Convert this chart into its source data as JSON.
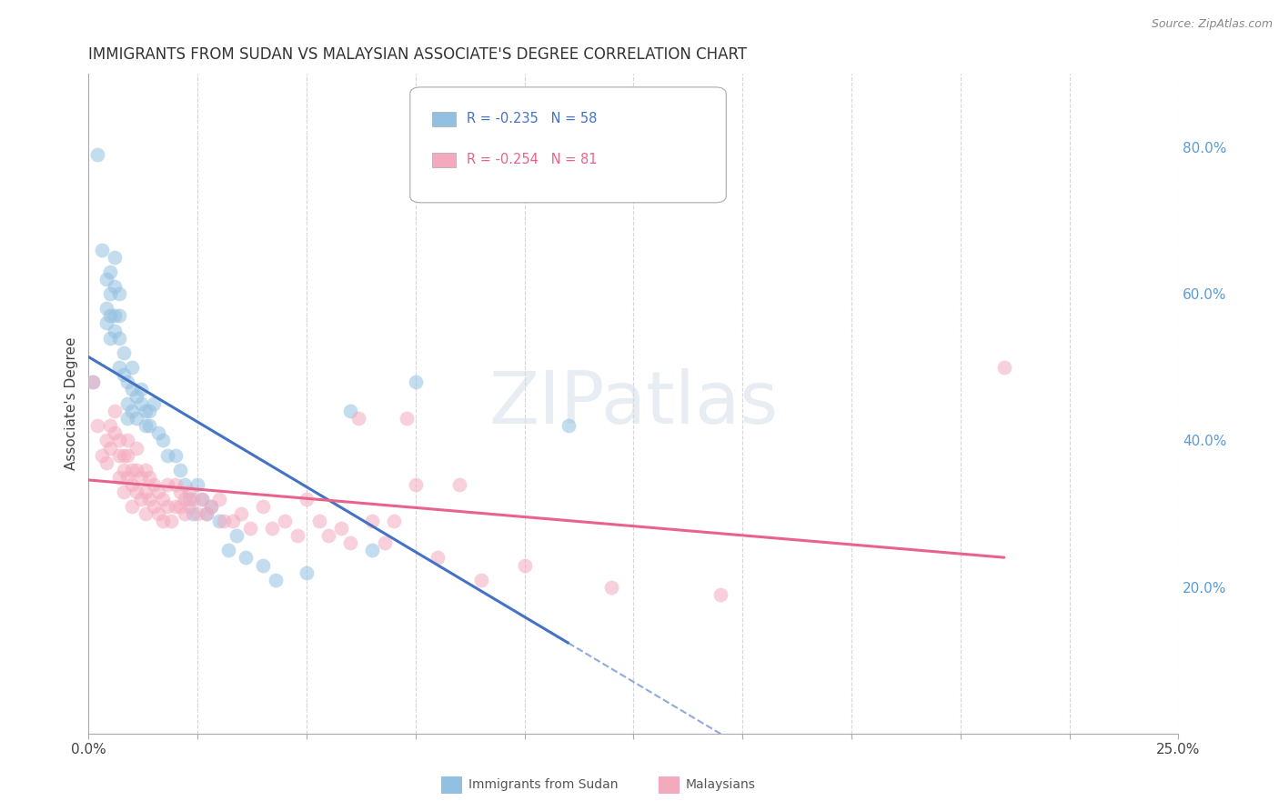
{
  "title": "IMMIGRANTS FROM SUDAN VS MALAYSIAN ASSOCIATE'S DEGREE CORRELATION CHART",
  "source": "Source: ZipAtlas.com",
  "ylabel": "Associate's Degree",
  "ylabel_right_ticks": [
    "20.0%",
    "40.0%",
    "60.0%",
    "80.0%"
  ],
  "ylabel_right_vals": [
    0.2,
    0.4,
    0.6,
    0.8
  ],
  "sudan_points": [
    [
      0.001,
      0.48
    ],
    [
      0.002,
      0.79
    ],
    [
      0.003,
      0.66
    ],
    [
      0.004,
      0.62
    ],
    [
      0.004,
      0.58
    ],
    [
      0.004,
      0.56
    ],
    [
      0.005,
      0.63
    ],
    [
      0.005,
      0.6
    ],
    [
      0.005,
      0.57
    ],
    [
      0.005,
      0.54
    ],
    [
      0.006,
      0.65
    ],
    [
      0.006,
      0.61
    ],
    [
      0.006,
      0.57
    ],
    [
      0.006,
      0.55
    ],
    [
      0.007,
      0.6
    ],
    [
      0.007,
      0.57
    ],
    [
      0.007,
      0.54
    ],
    [
      0.007,
      0.5
    ],
    [
      0.008,
      0.52
    ],
    [
      0.008,
      0.49
    ],
    [
      0.009,
      0.48
    ],
    [
      0.009,
      0.45
    ],
    [
      0.009,
      0.43
    ],
    [
      0.01,
      0.5
    ],
    [
      0.01,
      0.47
    ],
    [
      0.01,
      0.44
    ],
    [
      0.011,
      0.46
    ],
    [
      0.011,
      0.43
    ],
    [
      0.012,
      0.47
    ],
    [
      0.012,
      0.45
    ],
    [
      0.013,
      0.44
    ],
    [
      0.013,
      0.42
    ],
    [
      0.014,
      0.44
    ],
    [
      0.014,
      0.42
    ],
    [
      0.015,
      0.45
    ],
    [
      0.016,
      0.41
    ],
    [
      0.017,
      0.4
    ],
    [
      0.018,
      0.38
    ],
    [
      0.02,
      0.38
    ],
    [
      0.021,
      0.36
    ],
    [
      0.022,
      0.34
    ],
    [
      0.023,
      0.32
    ],
    [
      0.024,
      0.3
    ],
    [
      0.025,
      0.34
    ],
    [
      0.026,
      0.32
    ],
    [
      0.027,
      0.3
    ],
    [
      0.028,
      0.31
    ],
    [
      0.03,
      0.29
    ],
    [
      0.032,
      0.25
    ],
    [
      0.034,
      0.27
    ],
    [
      0.036,
      0.24
    ],
    [
      0.04,
      0.23
    ],
    [
      0.043,
      0.21
    ],
    [
      0.05,
      0.22
    ],
    [
      0.06,
      0.44
    ],
    [
      0.065,
      0.25
    ],
    [
      0.075,
      0.48
    ],
    [
      0.11,
      0.42
    ]
  ],
  "malaysian_points": [
    [
      0.001,
      0.48
    ],
    [
      0.002,
      0.42
    ],
    [
      0.003,
      0.38
    ],
    [
      0.004,
      0.4
    ],
    [
      0.004,
      0.37
    ],
    [
      0.005,
      0.42
    ],
    [
      0.005,
      0.39
    ],
    [
      0.006,
      0.44
    ],
    [
      0.006,
      0.41
    ],
    [
      0.007,
      0.4
    ],
    [
      0.007,
      0.38
    ],
    [
      0.007,
      0.35
    ],
    [
      0.008,
      0.38
    ],
    [
      0.008,
      0.36
    ],
    [
      0.008,
      0.33
    ],
    [
      0.009,
      0.4
    ],
    [
      0.009,
      0.38
    ],
    [
      0.009,
      0.35
    ],
    [
      0.01,
      0.36
    ],
    [
      0.01,
      0.34
    ],
    [
      0.01,
      0.31
    ],
    [
      0.011,
      0.39
    ],
    [
      0.011,
      0.36
    ],
    [
      0.011,
      0.33
    ],
    [
      0.012,
      0.35
    ],
    [
      0.012,
      0.32
    ],
    [
      0.013,
      0.36
    ],
    [
      0.013,
      0.33
    ],
    [
      0.013,
      0.3
    ],
    [
      0.014,
      0.35
    ],
    [
      0.014,
      0.32
    ],
    [
      0.015,
      0.34
    ],
    [
      0.015,
      0.31
    ],
    [
      0.016,
      0.33
    ],
    [
      0.016,
      0.3
    ],
    [
      0.017,
      0.32
    ],
    [
      0.017,
      0.29
    ],
    [
      0.018,
      0.34
    ],
    [
      0.018,
      0.31
    ],
    [
      0.019,
      0.29
    ],
    [
      0.02,
      0.34
    ],
    [
      0.02,
      0.31
    ],
    [
      0.021,
      0.33
    ],
    [
      0.021,
      0.31
    ],
    [
      0.022,
      0.32
    ],
    [
      0.022,
      0.3
    ],
    [
      0.023,
      0.33
    ],
    [
      0.023,
      0.31
    ],
    [
      0.024,
      0.32
    ],
    [
      0.025,
      0.3
    ],
    [
      0.026,
      0.32
    ],
    [
      0.027,
      0.3
    ],
    [
      0.028,
      0.31
    ],
    [
      0.03,
      0.32
    ],
    [
      0.031,
      0.29
    ],
    [
      0.033,
      0.29
    ],
    [
      0.035,
      0.3
    ],
    [
      0.037,
      0.28
    ],
    [
      0.04,
      0.31
    ],
    [
      0.042,
      0.28
    ],
    [
      0.045,
      0.29
    ],
    [
      0.048,
      0.27
    ],
    [
      0.05,
      0.32
    ],
    [
      0.053,
      0.29
    ],
    [
      0.055,
      0.27
    ],
    [
      0.058,
      0.28
    ],
    [
      0.06,
      0.26
    ],
    [
      0.062,
      0.43
    ],
    [
      0.065,
      0.29
    ],
    [
      0.068,
      0.26
    ],
    [
      0.07,
      0.29
    ],
    [
      0.073,
      0.43
    ],
    [
      0.075,
      0.34
    ],
    [
      0.08,
      0.24
    ],
    [
      0.085,
      0.34
    ],
    [
      0.09,
      0.21
    ],
    [
      0.1,
      0.23
    ],
    [
      0.12,
      0.2
    ],
    [
      0.145,
      0.19
    ],
    [
      0.21,
      0.5
    ]
  ],
  "sudan_color": "#92C0E0",
  "malaysian_color": "#F4AABE",
  "sudan_line_color": "#4472C4",
  "malaysian_line_color": "#E8638C",
  "xlim": [
    0.0,
    0.25
  ],
  "ylim": [
    0.0,
    0.9
  ],
  "background_color": "#ffffff",
  "grid_color": "#cccccc",
  "watermark": "ZIPatlas"
}
